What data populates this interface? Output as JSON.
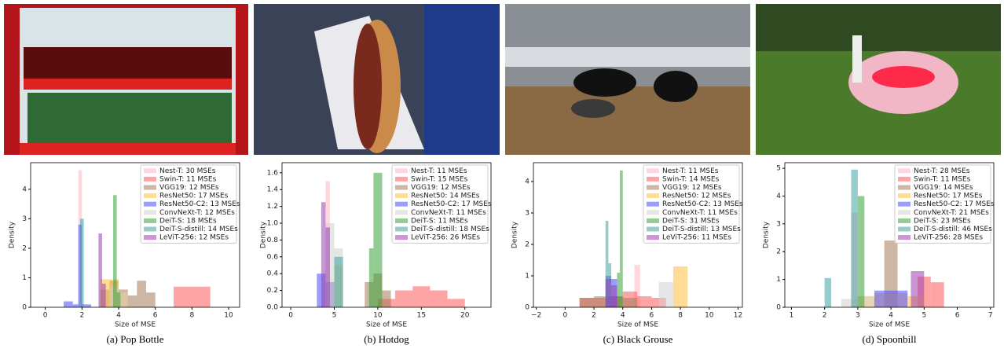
{
  "chart_data": [
    {
      "type": "histogram",
      "caption": "(a) Pop Bottle",
      "x_label": "Size of MSE",
      "y_label": "Density",
      "xlim": [
        -0.8,
        10.6
      ],
      "xticks": [
        0,
        2,
        4,
        6,
        8,
        10
      ],
      "ylim": [
        0,
        4.9
      ],
      "yticks": [
        0,
        1,
        2,
        3,
        4
      ],
      "series": [
        {
          "name": "Nest-T: 30 MSEs",
          "color": "#ffb6c1",
          "bins": [
            1.8,
            2.0
          ],
          "values": [
            4.65
          ]
        },
        {
          "name": "Swin-T: 11 MSEs",
          "color": "#ff5a5a",
          "bins": [
            7,
            8,
            9
          ],
          "values": [
            0.7,
            0.7
          ]
        },
        {
          "name": "VGG19: 12 MSEs",
          "color": "#a47a5a",
          "bins": [
            3.0,
            3.5,
            4.0,
            4.5,
            5.0,
            5.5,
            6.0
          ],
          "values": [
            0.6,
            0.9,
            0.6,
            0.4,
            0.9,
            0.5
          ]
        },
        {
          "name": "ResNet50: 17 MSEs",
          "color": "#ffbf40",
          "bins": [
            3.0,
            3.5,
            4.0,
            4.5
          ],
          "values": [
            0.95,
            0.95,
            0.5
          ]
        },
        {
          "name": "ResNet50-C2: 13 MSEs",
          "color": "#4a4aff",
          "bins": [
            1.0,
            1.5,
            1.8,
            2.0,
            2.5
          ],
          "values": [
            0.2,
            0.1,
            2.8,
            0.1
          ]
        },
        {
          "name": "ConvNeXt-T: 12 MSEs",
          "color": "#cfcfcf",
          "bins": [
            3.5,
            4.0,
            4.5
          ],
          "values": [
            0.7,
            0.5
          ]
        },
        {
          "name": "DeiT-S: 18 MSEs",
          "color": "#3aa23a",
          "bins": [
            3.7,
            3.9,
            4.1
          ],
          "values": [
            3.8,
            0.5
          ]
        },
        {
          "name": "DeiT-S-distill: 14 MSEs",
          "color": "#3ea3a3",
          "bins": [
            1.9,
            2.1
          ],
          "values": [
            3.0
          ]
        },
        {
          "name": "LeViT-256: 12 MSEs",
          "color": "#9a3fb0",
          "bins": [
            2.9,
            3.1,
            3.3
          ],
          "values": [
            2.5,
            0.8
          ]
        }
      ]
    },
    {
      "type": "histogram",
      "caption": "(b) Hotdog",
      "x_label": "Size of MSE",
      "y_label": "Density",
      "xlim": [
        -1,
        23
      ],
      "xticks": [
        0,
        5,
        10,
        15,
        20
      ],
      "ylim": [
        0,
        1.72
      ],
      "yticks": [
        {
          "value": 0,
          "label": "0.0"
        },
        {
          "value": 0.2,
          "label": "0.2"
        },
        {
          "value": 0.4,
          "label": "0.4"
        },
        {
          "value": 0.6,
          "label": "0.6"
        },
        {
          "value": 0.8,
          "label": "0.8"
        },
        {
          "value": 1,
          "label": "1.0"
        },
        {
          "value": 1.2,
          "label": "1.2"
        },
        {
          "value": 1.4,
          "label": "1.4"
        },
        {
          "value": 1.6,
          "label": "1.6"
        }
      ],
      "series": [
        {
          "name": "Nest-T: 11 MSEs",
          "color": "#ffb6c1",
          "bins": [
            4.0,
            4.5
          ],
          "values": [
            1.5
          ]
        },
        {
          "name": "Swin-T: 15 MSEs",
          "color": "#ff5a5a",
          "bins": [
            10,
            12,
            14,
            16,
            18,
            20
          ],
          "values": [
            0.1,
            0.2,
            0.25,
            0.2,
            0.1
          ]
        },
        {
          "name": "VGG19: 12 MSEs",
          "color": "#a47a5a",
          "bins": [
            8.5,
            9.5,
            10.5,
            11.5
          ],
          "values": [
            0.3,
            0.4,
            0.2
          ]
        },
        {
          "name": "ResNet50: 14 MSEs",
          "color": "#ffbf40",
          "bins": [
            4,
            5,
            6
          ],
          "values": [
            0.3,
            0.5
          ]
        },
        {
          "name": "ResNet50-C2: 17 MSEs",
          "color": "#4a4aff",
          "bins": [
            3,
            4,
            5
          ],
          "values": [
            0.4,
            0.3
          ]
        },
        {
          "name": "ConvNeXt-T: 11 MSEs",
          "color": "#cfcfcf",
          "bins": [
            4,
            5,
            6
          ],
          "values": [
            1.0,
            0.7
          ]
        },
        {
          "name": "DeiT-S: 11 MSEs",
          "color": "#3aa23a",
          "bins": [
            9.0,
            9.5,
            10.5
          ],
          "values": [
            0.7,
            1.6
          ]
        },
        {
          "name": "DeiT-S-distill: 18 MSEs",
          "color": "#3ea3a3",
          "bins": [
            5,
            6
          ],
          "values": [
            0.6
          ]
        },
        {
          "name": "LeViT-256: 26 MSEs",
          "color": "#9a3fb0",
          "bins": [
            3.5,
            4.0,
            4.5
          ],
          "values": [
            1.25,
            0.95
          ]
        }
      ]
    },
    {
      "type": "histogram",
      "caption": "(c) Black Grouse",
      "x_label": "Size of MSE",
      "y_label": "Density",
      "xlim": [
        -2.2,
        12.3
      ],
      "xticks": [
        {
          "value": -2,
          "label": "−2"
        },
        0,
        2,
        4,
        6,
        8,
        10,
        12
      ],
      "ylim": [
        0,
        4.6
      ],
      "yticks": [
        0,
        1,
        2,
        3,
        4
      ],
      "series": [
        {
          "name": "Nest-T: 11 MSEs",
          "color": "#ffb6c1",
          "bins": [
            4.8,
            5.2
          ],
          "values": [
            1.35
          ]
        },
        {
          "name": "Swin-T: 14 MSEs",
          "color": "#ff5a5a",
          "bins": [
            1,
            2,
            3,
            4,
            5,
            6,
            7
          ],
          "values": [
            0.3,
            0.3,
            0.35,
            0.5,
            0.35,
            0.3
          ]
        },
        {
          "name": "VGG19: 12 MSEs",
          "color": "#a47a5a",
          "bins": [
            1,
            2,
            3,
            4,
            5
          ],
          "values": [
            0.3,
            0.35,
            0.35,
            0.3
          ]
        },
        {
          "name": "ResNet50: 12 MSEs",
          "color": "#ffbf40",
          "bins": [
            7.5,
            8.5
          ],
          "values": [
            1.3
          ]
        },
        {
          "name": "ResNet50-C2: 13 MSEs",
          "color": "#4a4aff",
          "bins": [
            2.8,
            3.2,
            3.6
          ],
          "values": [
            1.0,
            0.9
          ]
        },
        {
          "name": "ConvNeXt-T: 11 MSEs",
          "color": "#cfcfcf",
          "bins": [
            6.5,
            7.5
          ],
          "values": [
            0.8
          ]
        },
        {
          "name": "DeiT-S: 31 MSEs",
          "color": "#3aa23a",
          "bins": [
            3.6,
            3.8,
            4.0
          ],
          "values": [
            1.1,
            4.35
          ]
        },
        {
          "name": "DeiT-S-distill: 13 MSEs",
          "color": "#3ea3a3",
          "bins": [
            2.8,
            3.0,
            3.2
          ],
          "values": [
            2.75,
            1.4
          ]
        },
        {
          "name": "LeViT-256: 11 MSEs",
          "color": "#9a3fb0",
          "bins": [
            2.8,
            3.2,
            3.6
          ],
          "values": [
            0.9,
            0.7
          ]
        }
      ]
    },
    {
      "type": "histogram",
      "caption": "(d) Spoonbill",
      "x_label": "Size of MSE",
      "y_label": "Density",
      "xlim": [
        0.8,
        7.1
      ],
      "xticks": [
        1,
        2,
        3,
        4,
        5,
        6,
        7
      ],
      "ylim": [
        0,
        5.2
      ],
      "yticks": [
        0,
        1,
        2,
        3,
        4,
        5
      ],
      "series": [
        {
          "name": "Nest-T: 28 MSEs",
          "color": "#ffb6c1",
          "bins": [
            2.8,
            3.0
          ],
          "values": [
            3.4
          ]
        },
        {
          "name": "Swin-T: 11 MSEs",
          "color": "#ff5a5a",
          "bins": [
            4.8,
            5.2,
            5.6
          ],
          "values": [
            1.1,
            0.9
          ]
        },
        {
          "name": "VGG19: 14 MSEs",
          "color": "#a47a5a",
          "bins": [
            3.8,
            4.2
          ],
          "values": [
            2.4
          ]
        },
        {
          "name": "ResNet50: 17 MSEs",
          "color": "#ffbf40",
          "bins": [
            3.0,
            3.5,
            4.0,
            4.5,
            5.0
          ],
          "values": [
            0.4,
            0.5,
            0.5,
            0.4
          ]
        },
        {
          "name": "ResNet50-C2: 17 MSEs",
          "color": "#4a4aff",
          "bins": [
            3.5,
            4.0,
            4.5
          ],
          "values": [
            0.6,
            0.6
          ]
        },
        {
          "name": "ConvNeXt-T: 21 MSEs",
          "color": "#cfcfcf",
          "bins": [
            2.5,
            3.0,
            3.5
          ],
          "values": [
            0.3,
            0.4
          ]
        },
        {
          "name": "DeiT-S: 23 MSEs",
          "color": "#3aa23a",
          "bins": [
            3.0,
            3.2
          ],
          "values": [
            4.0
          ]
        },
        {
          "name": "DeiT-S-distill: 46 MSEs",
          "color": "#3ea3a3",
          "bins": [
            2.0,
            2.2,
            2.8,
            3.0
          ],
          "values": [
            1.05,
            0,
            4.95
          ]
        },
        {
          "name": "LeViT-256: 28 MSEs",
          "color": "#9a3fb0",
          "bins": [
            4.6,
            5.0
          ],
          "values": [
            1.3
          ]
        }
      ]
    }
  ]
}
